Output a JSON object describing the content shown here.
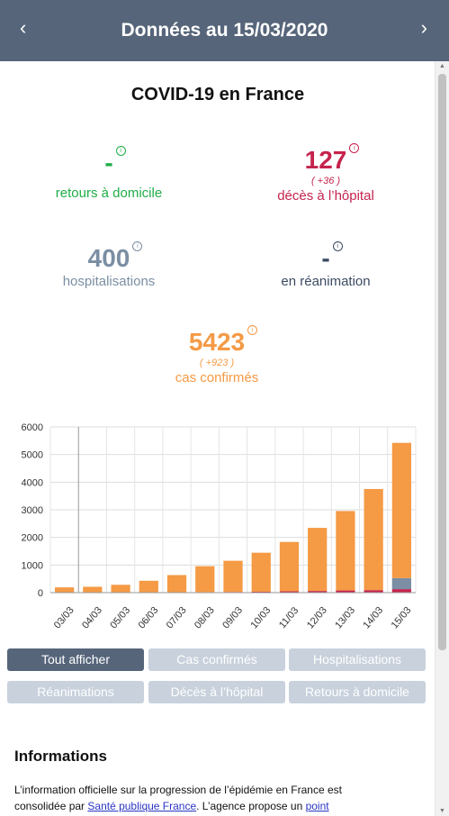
{
  "header": {
    "title": "Données au 15/03/2020",
    "prev_icon": "‹",
    "next_icon": "›"
  },
  "page_title": "COVID-19 en France",
  "stats": {
    "retours": {
      "value": "-",
      "label": "retours à domicile",
      "color": "#1fae48"
    },
    "deces": {
      "value": "127",
      "delta": "( +36 )",
      "label": "décès à l’hôpital",
      "color": "#c5234d"
    },
    "hospitalisations": {
      "value": "400",
      "label": "hospitalisations",
      "color": "#7b8ea3"
    },
    "reanimation": {
      "value": "-",
      "label": "en réanimation",
      "color": "#3b4b62"
    },
    "cas": {
      "value": "5423",
      "delta": "( +923 )",
      "label": "cas confirmés",
      "color": "#f59a45"
    },
    "info_icon": "i"
  },
  "chart_data": {
    "type": "bar",
    "stacked": true,
    "categories": [
      "03/03",
      "04/03",
      "05/03",
      "06/03",
      "07/03",
      "08/03",
      "09/03",
      "10/03",
      "11/03",
      "12/03",
      "13/03",
      "14/03",
      "15/03"
    ],
    "series": [
      {
        "name": "Décès à l’hôpital",
        "color": "#c5234d",
        "values": [
          4,
          4,
          6,
          9,
          11,
          19,
          25,
          33,
          48,
          61,
          79,
          91,
          127
        ]
      },
      {
        "name": "Réanimation",
        "color": "#3b4b62",
        "values": [
          0,
          0,
          0,
          0,
          0,
          0,
          0,
          0,
          0,
          0,
          0,
          0,
          0
        ]
      },
      {
        "name": "Hospitalisations",
        "color": "#7b8ea3",
        "values": [
          0,
          0,
          0,
          0,
          0,
          0,
          0,
          0,
          0,
          0,
          0,
          0,
          400
        ]
      },
      {
        "name": "Cas confirmés",
        "color": "#f59a45",
        "values": [
          187,
          208,
          278,
          421,
          625,
          938,
          1129,
          1412,
          1787,
          2284,
          2876,
          3661,
          4896
        ]
      }
    ],
    "ylim": [
      0,
      6000
    ],
    "yticks": [
      "0",
      "1000",
      "2000",
      "3000",
      "4000",
      "5000",
      "6000"
    ],
    "grid": true
  },
  "buttons": [
    {
      "label": "Tout afficher",
      "active": true
    },
    {
      "label": "Cas confirmés"
    },
    {
      "label": "Hospitalisations"
    },
    {
      "label": "Réanimations"
    },
    {
      "label": "Décès à l’hôpital"
    },
    {
      "label": "Retours à domicile"
    }
  ],
  "informations": {
    "title": "Informations",
    "text_before": "L’information officielle sur la progression de l’épidémie en France est consolidée par ",
    "link1": "Santé publique France",
    "text_middle": ". L’agence propose un ",
    "link2": "point"
  }
}
